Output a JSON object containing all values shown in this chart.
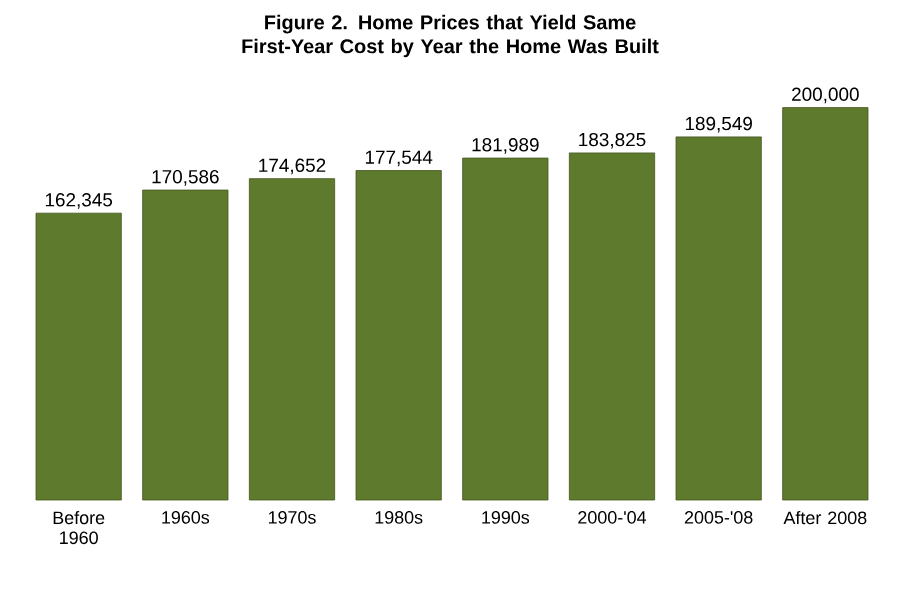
{
  "chart_data": {
    "type": "bar",
    "title": "Figure 2.  Home Prices that Yield Same First-Year Cost by Year the Home Was Built",
    "categories": [
      "Before 1960",
      "1960s",
      "1970s",
      "1980s",
      "1990s",
      "2000-'04",
      "2005-'08",
      "After 2008"
    ],
    "values": [
      162345,
      170586,
      174652,
      177544,
      181989,
      183825,
      189549,
      200000
    ],
    "value_labels": [
      "162,345",
      "170,586",
      "174,652",
      "177,544",
      "181,989",
      "183,825",
      "189,549",
      "200,000"
    ],
    "color": "#5e7a2c",
    "ylim": [
      60000,
      202000
    ]
  }
}
